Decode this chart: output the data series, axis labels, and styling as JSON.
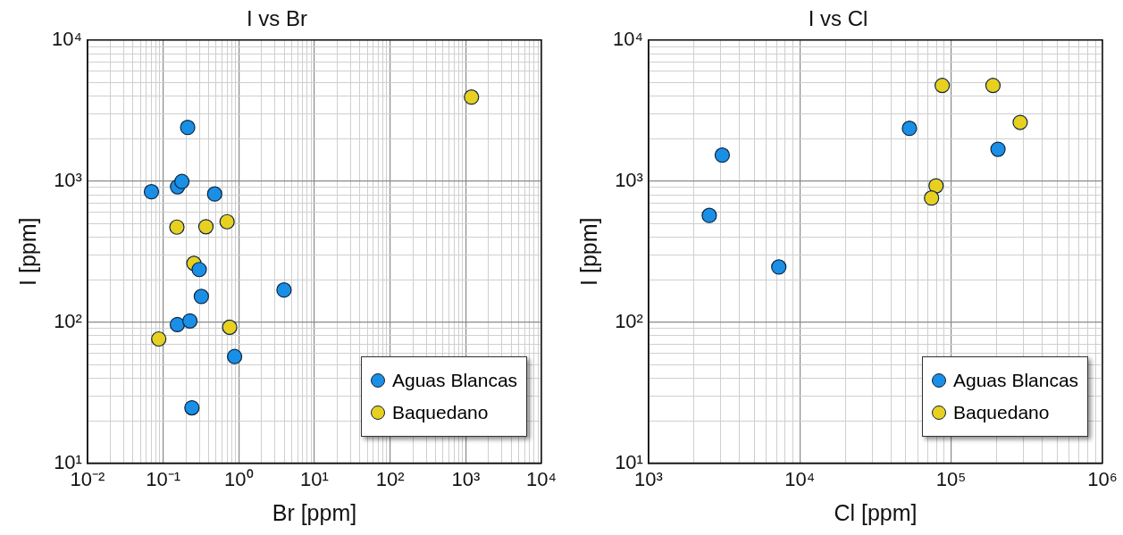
{
  "chart_data": [
    {
      "type": "scatter",
      "title": "I vs Br",
      "xlabel": "Br [ppm]",
      "ylabel": "I [ppm]",
      "log": "xy",
      "grid": true,
      "legend": "bottom right",
      "marker": "circle",
      "xlim": [
        0.01,
        10000
      ],
      "ylim": [
        10,
        10000
      ],
      "xticks": [
        {
          "value": 0.01,
          "label": "10⁻²"
        },
        {
          "value": 0.1,
          "label": "10⁻¹"
        },
        {
          "value": 1,
          "label": "10⁰"
        },
        {
          "value": 10,
          "label": "10¹"
        },
        {
          "value": 100,
          "label": "10²"
        },
        {
          "value": 1000,
          "label": "10³"
        },
        {
          "value": 10000,
          "label": "10⁴"
        }
      ],
      "yticks": [
        {
          "value": 10,
          "label": "10¹"
        },
        {
          "value": 100,
          "label": "10²"
        },
        {
          "value": 1000,
          "label": "10³"
        },
        {
          "value": 10000,
          "label": "10⁴"
        }
      ],
      "series": [
        {
          "name": "Aguas Blancas",
          "color": "#1a8fe6",
          "x": [
            0.07,
            0.155,
            0.177,
            0.211,
            0.48,
            0.3,
            0.32,
            3.96,
            0.154,
            0.226,
            0.88,
            0.24
          ],
          "values": [
            840,
            912,
            993,
            2400,
            810,
            236,
            152,
            169,
            96,
            102,
            57,
            24.7
          ]
        },
        {
          "name": "Baquedano",
          "color": "#e8d020",
          "x": [
            1190,
            0.152,
            0.368,
            0.7,
            0.255,
            0.0875,
            0.758
          ],
          "values": [
            3940,
            472,
            475,
            515,
            261,
            76,
            92
          ]
        }
      ]
    },
    {
      "type": "scatter",
      "title": "I vs Cl",
      "xlabel": "Cl [ppm]",
      "ylabel": "I [ppm]",
      "log": "xy",
      "grid": true,
      "legend": "bottom right",
      "marker": "circle",
      "xlim": [
        1000,
        1000000
      ],
      "ylim": [
        10,
        10000
      ],
      "xticks": [
        {
          "value": 1000,
          "label": "10³"
        },
        {
          "value": 10000,
          "label": "10⁴"
        },
        {
          "value": 100000,
          "label": "10⁵"
        },
        {
          "value": 1000000,
          "label": "10⁶"
        }
      ],
      "yticks": [
        {
          "value": 10,
          "label": "10¹"
        },
        {
          "value": 100,
          "label": "10²"
        },
        {
          "value": 1000,
          "label": "10³"
        },
        {
          "value": 10000,
          "label": "10⁴"
        }
      ],
      "series": [
        {
          "name": "Aguas Blancas",
          "color": "#1a8fe6",
          "x": [
            2520,
            3070,
            7260,
            53000,
            204000
          ],
          "values": [
            571,
            1527,
            246,
            2366,
            1682
          ]
        },
        {
          "name": "Baquedano",
          "color": "#e8d020",
          "x": [
            87300,
            189000,
            286000,
            79500,
            74200
          ],
          "values": [
            4760,
            4760,
            2606,
            925,
            759
          ]
        }
      ]
    }
  ]
}
